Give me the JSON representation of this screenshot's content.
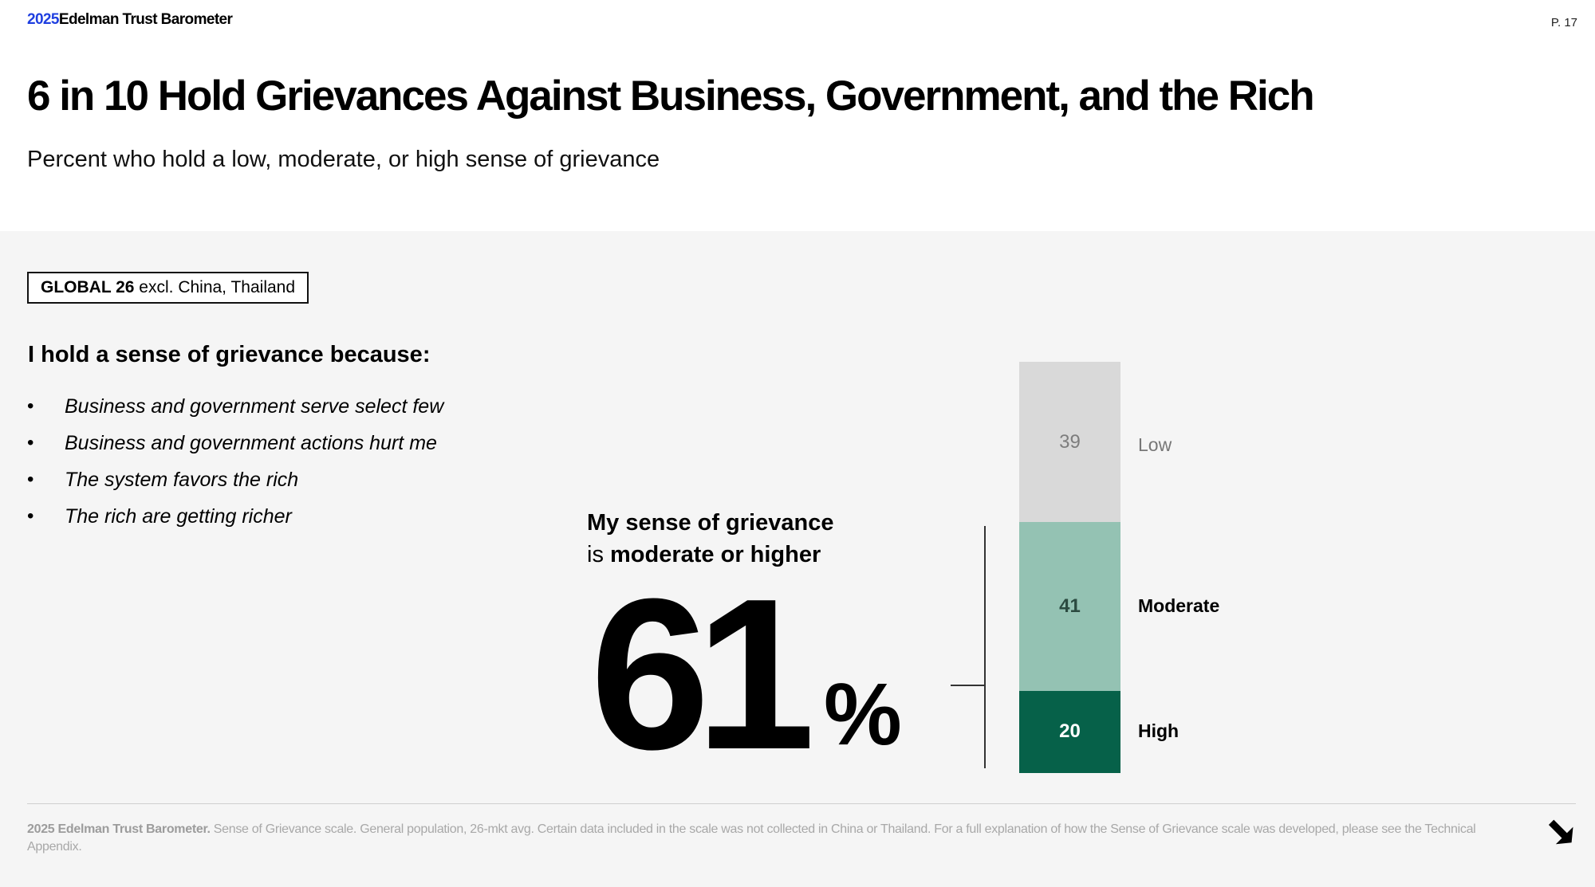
{
  "header": {
    "brand_year": "2025",
    "brand_name": "Edelman Trust Barometer",
    "page_number": "P. 17",
    "title": "6 in 10 Hold Grievances Against Business, Government, and the Rich",
    "subtitle": "Percent who hold a low, moderate, or high sense of grievance"
  },
  "tag": {
    "bold": "GLOBAL 26",
    "rest": " excl. China, Thailand"
  },
  "reasons": {
    "heading": "I hold a sense of grievance because:",
    "items": [
      "Business and government serve select few",
      "Business and government actions hurt me",
      "The system favors the rich",
      "The rich are getting richer"
    ]
  },
  "callout": {
    "line1_bold": "My sense of grievance",
    "line2_prefix": "is ",
    "line2_bold": "moderate or higher",
    "value": "61",
    "unit": "%"
  },
  "colors": {
    "low": "#d9d9d9",
    "moderate": "#94c2b3",
    "high": "#066149",
    "brand_blue": "#1f3fe0"
  },
  "chart_data": {
    "type": "bar",
    "stacked": true,
    "title": "Percent who hold a low, moderate, or high sense of grievance",
    "categories": [
      "Low",
      "Moderate",
      "High"
    ],
    "values": [
      39,
      41,
      20
    ],
    "unit": "percent",
    "ylim": [
      0,
      100
    ],
    "annotation": "61% moderate or higher (Moderate + High)"
  },
  "footer": {
    "source_bold": "2025 Edelman Trust Barometer.",
    "note": " Sense of Grievance scale. General population, 26-mkt avg. Certain data included in the scale was not collected in China or Thailand. For a full explanation of how the Sense of Grievance scale was developed, please see the Technical Appendix."
  }
}
